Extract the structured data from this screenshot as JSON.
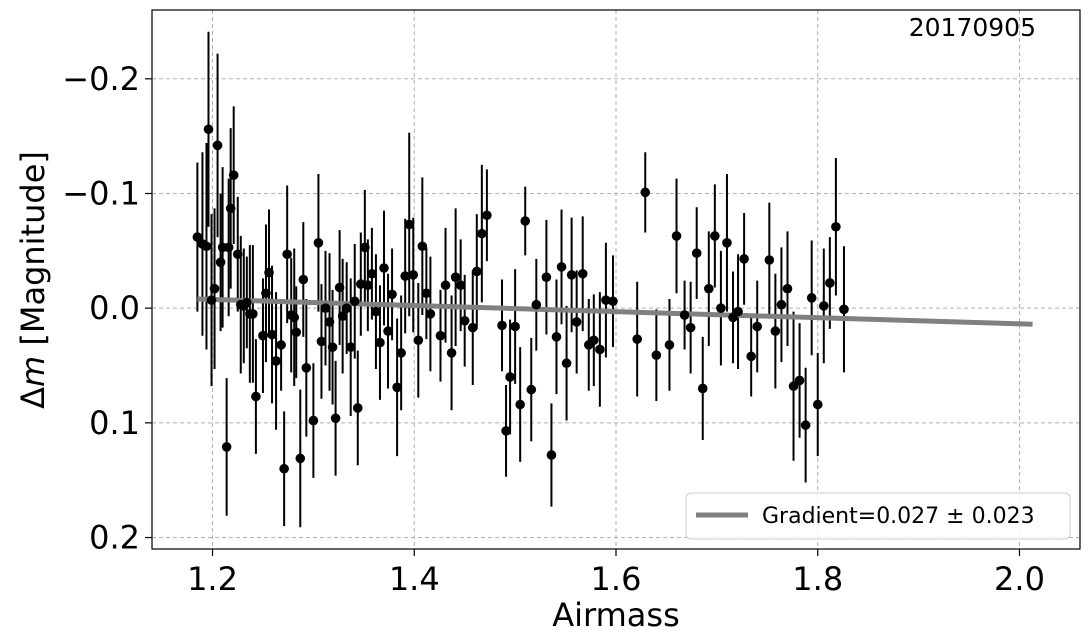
{
  "chart_data": {
    "type": "scatter",
    "annotation": "20170905",
    "xlabel": "Airmass",
    "ylabel_prefix": "Δ",
    "ylabel_var": "m",
    "ylabel_suffix": " [Magnitude]",
    "xlim": [
      1.14,
      2.06
    ],
    "ylim": [
      0.21,
      -0.26
    ],
    "y_inverted": true,
    "x_ticks": [
      1.2,
      1.4,
      1.6,
      1.8,
      2.0
    ],
    "x_tick_labels": [
      "1.2",
      "1.4",
      "1.6",
      "1.8",
      "2.0"
    ],
    "y_ticks": [
      -0.2,
      -0.1,
      0.0,
      0.1,
      0.2
    ],
    "y_tick_labels": [
      "−0.2",
      "−0.1",
      "0.0",
      "0.1",
      "0.2"
    ],
    "grid": true,
    "legend_position": "bottom-right",
    "colors": {
      "points": "#000000",
      "fit_line": "#808080",
      "grid": "#b0b0b0"
    },
    "fit": {
      "label": "Gradient=0.027 ± 0.023",
      "x": [
        1.185,
        2.013
      ],
      "y": [
        -0.008,
        0.014
      ]
    },
    "points": [
      [
        1.185,
        -0.062,
        0.065
      ],
      [
        1.19,
        -0.056,
        0.08
      ],
      [
        1.194,
        -0.054,
        0.09
      ],
      [
        1.196,
        -0.156,
        0.085
      ],
      [
        1.199,
        -0.007,
        0.075
      ],
      [
        1.202,
        -0.017,
        0.07
      ],
      [
        1.205,
        -0.142,
        0.08
      ],
      [
        1.208,
        -0.04,
        0.06
      ],
      [
        1.21,
        -0.053,
        0.07
      ],
      [
        1.214,
        0.121,
        0.06
      ],
      [
        1.216,
        -0.053,
        0.06
      ],
      [
        1.218,
        -0.087,
        0.07
      ],
      [
        1.221,
        -0.116,
        0.06
      ],
      [
        1.225,
        -0.047,
        0.05
      ],
      [
        1.228,
        -0.003,
        0.06
      ],
      [
        1.231,
        -0.002,
        0.05
      ],
      [
        1.234,
        -0.005,
        0.04
      ],
      [
        1.237,
        0.005,
        0.06
      ],
      [
        1.24,
        0.005,
        0.06
      ],
      [
        1.243,
        0.077,
        0.05
      ],
      [
        1.25,
        0.024,
        0.05
      ],
      [
        1.253,
        -0.013,
        0.06
      ],
      [
        1.256,
        -0.031,
        0.055
      ],
      [
        1.259,
        0.023,
        0.06
      ],
      [
        1.263,
        0.046,
        0.06
      ],
      [
        1.268,
        0.032,
        0.04
      ],
      [
        1.271,
        0.14,
        0.05
      ],
      [
        1.274,
        -0.047,
        0.06
      ],
      [
        1.278,
        0.006,
        0.05
      ],
      [
        1.281,
        0.008,
        0.06
      ],
      [
        1.283,
        0.021,
        0.04
      ],
      [
        1.287,
        0.131,
        0.06
      ],
      [
        1.29,
        -0.025,
        0.05
      ],
      [
        1.293,
        0.052,
        0.06
      ],
      [
        1.3,
        0.098,
        0.05
      ],
      [
        1.305,
        -0.057,
        0.06
      ],
      [
        1.308,
        0.029,
        0.05
      ],
      [
        1.312,
        0.0,
        0.05
      ],
      [
        1.316,
        0.012,
        0.06
      ],
      [
        1.319,
        0.034,
        0.05
      ],
      [
        1.322,
        0.096,
        0.05
      ],
      [
        1.326,
        -0.018,
        0.05
      ],
      [
        1.329,
        0.007,
        0.05
      ],
      [
        1.333,
        0.0,
        0.04
      ],
      [
        1.337,
        0.034,
        0.06
      ],
      [
        1.341,
        -0.006,
        0.05
      ],
      [
        1.344,
        0.087,
        0.05
      ],
      [
        1.347,
        -0.021,
        0.045
      ],
      [
        1.351,
        -0.053,
        0.05
      ],
      [
        1.354,
        -0.02,
        0.04
      ],
      [
        1.358,
        -0.03,
        0.04
      ],
      [
        1.362,
        0.003,
        0.05
      ],
      [
        1.366,
        0.03,
        0.05
      ],
      [
        1.37,
        -0.035,
        0.05
      ],
      [
        1.374,
        0.02,
        0.05
      ],
      [
        1.378,
        -0.012,
        0.04
      ],
      [
        1.383,
        0.069,
        0.06
      ],
      [
        1.387,
        0.039,
        0.05
      ],
      [
        1.391,
        -0.028,
        0.05
      ],
      [
        1.395,
        -0.073,
        0.08
      ],
      [
        1.399,
        -0.029,
        0.05
      ],
      [
        1.404,
        0.028,
        0.05
      ],
      [
        1.408,
        -0.054,
        0.06
      ],
      [
        1.412,
        -0.013,
        0.04
      ],
      [
        1.416,
        0.005,
        0.05
      ],
      [
        1.426,
        0.024,
        0.04
      ],
      [
        1.431,
        -0.02,
        0.05
      ],
      [
        1.437,
        0.039,
        0.05
      ],
      [
        1.441,
        -0.027,
        0.06
      ],
      [
        1.446,
        -0.02,
        0.04
      ],
      [
        1.45,
        0.011,
        0.04
      ],
      [
        1.458,
        0.017,
        0.05
      ],
      [
        1.462,
        -0.032,
        0.05
      ],
      [
        1.467,
        -0.065,
        0.06
      ],
      [
        1.472,
        -0.081,
        0.04
      ],
      [
        1.487,
        0.015,
        0.04
      ],
      [
        1.491,
        0.107,
        0.04
      ],
      [
        1.495,
        0.06,
        0.05
      ],
      [
        1.5,
        0.016,
        0.05
      ],
      [
        1.505,
        0.084,
        0.05
      ],
      [
        1.51,
        -0.076,
        0.03
      ],
      [
        1.516,
        0.071,
        0.045
      ],
      [
        1.521,
        -0.003,
        0.04
      ],
      [
        1.531,
        -0.027,
        0.05
      ],
      [
        1.536,
        0.128,
        0.045
      ],
      [
        1.541,
        0.025,
        0.05
      ],
      [
        1.546,
        -0.036,
        0.05
      ],
      [
        1.551,
        0.048,
        0.05
      ],
      [
        1.556,
        -0.029,
        0.05
      ],
      [
        1.561,
        0.012,
        0.045
      ],
      [
        1.567,
        -0.03,
        0.05
      ],
      [
        1.573,
        0.032,
        0.04
      ],
      [
        1.578,
        0.028,
        0.04
      ],
      [
        1.584,
        0.036,
        0.05
      ],
      [
        1.59,
        -0.007,
        0.05
      ],
      [
        1.597,
        -0.006,
        0.04
      ],
      [
        1.621,
        0.027,
        0.05
      ],
      [
        1.629,
        -0.101,
        0.035
      ],
      [
        1.64,
        0.041,
        0.04
      ],
      [
        1.653,
        0.032,
        0.04
      ],
      [
        1.66,
        -0.063,
        0.05
      ],
      [
        1.668,
        0.006,
        0.03
      ],
      [
        1.674,
        0.017,
        0.04
      ],
      [
        1.68,
        -0.048,
        0.04
      ],
      [
        1.686,
        0.07,
        0.045
      ],
      [
        1.692,
        -0.017,
        0.05
      ],
      [
        1.698,
        -0.063,
        0.045
      ],
      [
        1.704,
        0.0,
        0.05
      ],
      [
        1.71,
        -0.057,
        0.06
      ],
      [
        1.716,
        0.008,
        0.04
      ],
      [
        1.721,
        0.003,
        0.05
      ],
      [
        1.727,
        -0.043,
        0.04
      ],
      [
        1.734,
        0.042,
        0.035
      ],
      [
        1.74,
        0.016,
        0.04
      ],
      [
        1.752,
        -0.042,
        0.05
      ],
      [
        1.758,
        0.02,
        0.05
      ],
      [
        1.764,
        -0.003,
        0.05
      ],
      [
        1.77,
        -0.017,
        0.05
      ],
      [
        1.776,
        0.068,
        0.065
      ],
      [
        1.782,
        0.063,
        0.05
      ],
      [
        1.788,
        0.102,
        0.05
      ],
      [
        1.794,
        -0.009,
        0.05
      ],
      [
        1.8,
        0.084,
        0.045
      ],
      [
        1.806,
        -0.002,
        0.05
      ],
      [
        1.812,
        -0.022,
        0.04
      ],
      [
        1.818,
        -0.071,
        0.06
      ],
      [
        1.826,
        0.001,
        0.055
      ]
    ]
  }
}
